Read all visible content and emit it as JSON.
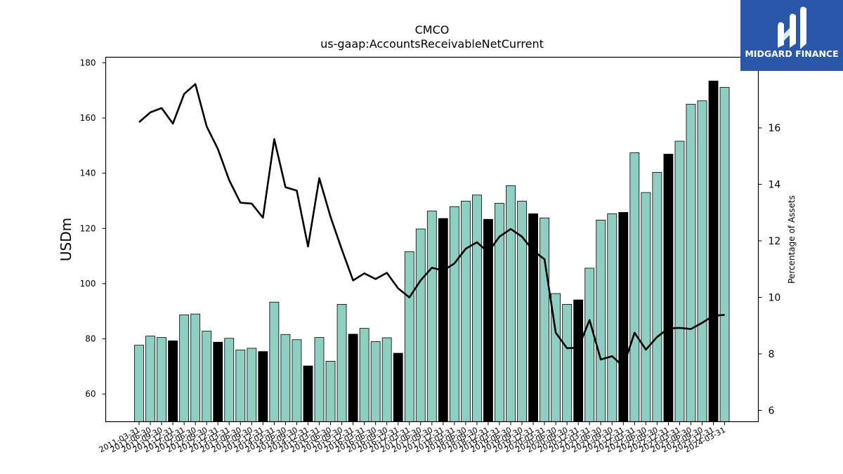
{
  "chart_data": {
    "type": "bar",
    "title": "CMCO",
    "subtitle": "us-gaap:AccountsReceivableNetCurrent",
    "ylabel": "USDm",
    "y2label": "Percentage of Assets",
    "ylim": [
      50,
      182
    ],
    "y2lim": [
      5.6,
      18.5
    ],
    "yticks": [
      60,
      80,
      100,
      120,
      140,
      160,
      180
    ],
    "y2ticks": [
      6,
      8,
      10,
      12,
      14,
      16
    ],
    "categories": [
      "2011-03-31",
      "2011-06-30",
      "2011-09-30",
      "2011-12-31",
      "2012-03-31",
      "2012-06-30",
      "2012-09-30",
      "2012-12-31",
      "2013-03-31",
      "2013-06-30",
      "2013-09-30",
      "2013-12-31",
      "2014-03-31",
      "2014-06-30",
      "2014-09-30",
      "2014-12-31",
      "2015-03-31",
      "2015-06-30",
      "2015-09-30",
      "2015-12-31",
      "2016-03-31",
      "2016-06-30",
      "2016-09-30",
      "2016-12-31",
      "2017-03-31",
      "2017-06-30",
      "2017-09-30",
      "2017-12-31",
      "2018-03-31",
      "2018-06-30",
      "2018-09-30",
      "2018-12-31",
      "2019-03-31",
      "2019-06-30",
      "2019-09-30",
      "2019-12-31",
      "2020-03-31",
      "2020-06-30",
      "2020-09-30",
      "2020-12-31",
      "2021-03-31",
      "2021-06-30",
      "2021-09-30",
      "2021-12-31",
      "2022-03-31",
      "2022-06-30",
      "2022-09-30",
      "2022-12-31",
      "2023-03-31",
      "2023-06-30",
      "2023-09-30",
      "2023-12-31",
      "2024-03-31"
    ],
    "xtick_labels": [
      "2011-03-31",
      "2011-06-30",
      "2011-09-30",
      "2011-12-31",
      "2012-03-31",
      "2012-06-30",
      "2012-09-30",
      "2012-12-31",
      "2013-03-31",
      "2013-06-30",
      "2013-09-30",
      "2013-12-31",
      "2014-03-31",
      "2014-06-30",
      "2014-09-30",
      "2014-12-31",
      "2015-03-31",
      "2015-06-30",
      "2015-09-30",
      "2015-12-31",
      "2016-03-31",
      "2016-06-30",
      "2016-09-30",
      "2016-12-31",
      "2017-03-31",
      "2017-06-30",
      "2017-09-30",
      "2017-12-31",
      "2018-03-31",
      "2018-06-30",
      "2018-09-30",
      "2018-12-31",
      "2019-03-31",
      "2019-06-30",
      "2019-09-30",
      "2019-12-31",
      "2020-03-31",
      "2020-06-30",
      "2020-09-30",
      "2020-12-31",
      "2021-03-31",
      "2021-06-30",
      "2021-09-30",
      "2021-12-31",
      "2022-03-31",
      "2022-06-30",
      "2022-09-30",
      "2022-12-31",
      "2023-03-31",
      "2023-06-30",
      "2023-09-30",
      "2023-12-31",
      "2024-03-31"
    ],
    "series": [
      {
        "name": "AccountsReceivableNetCurrent",
        "values": [
          77.7,
          81.0,
          80.5,
          79.3,
          88.7,
          89.0,
          82.8,
          78.8,
          80.2,
          76.0,
          76.6,
          75.4,
          93.3,
          81.6,
          79.7,
          70.2,
          80.5,
          71.9,
          92.5,
          81.7,
          83.8,
          79.0,
          80.4,
          74.8,
          111.6,
          119.8,
          126.3,
          123.6,
          127.9,
          129.9,
          132.1,
          123.3,
          129.1,
          135.5,
          129.9,
          125.3,
          123.8,
          96.4,
          92.5,
          94.1,
          105.6,
          123.0,
          125.3,
          125.8,
          147.4,
          133.0,
          140.3,
          146.9,
          151.6,
          165.0,
          166.2,
          173.4,
          171.1
        ]
      },
      {
        "name": "Percentage of Assets",
        "values": [
          16.2,
          16.55,
          16.7,
          16.15,
          17.2,
          17.55,
          16.05,
          15.25,
          14.15,
          13.35,
          13.32,
          12.82,
          15.6,
          13.9,
          13.78,
          11.8,
          14.22,
          12.85,
          11.7,
          10.6,
          10.85,
          10.65,
          10.87,
          10.32,
          10.0,
          10.6,
          11.05,
          10.95,
          11.2,
          11.72,
          11.95,
          11.6,
          12.15,
          12.42,
          12.15,
          11.65,
          11.35,
          8.75,
          8.2,
          8.22,
          9.2,
          7.8,
          7.92,
          7.55,
          8.75,
          8.15,
          8.6,
          8.9,
          8.92,
          8.88,
          9.1,
          9.35,
          9.38
        ]
      }
    ],
    "highlight_indices": [
      3,
      7,
      11,
      15,
      19,
      23,
      27,
      31,
      35,
      39,
      43,
      47,
      51
    ],
    "colors": {
      "bar": "#8ecfc1",
      "bar_highlight": "#000000",
      "line": "#000000"
    }
  },
  "logo": {
    "text": "MIDGARD FINANCE",
    "bg": "#2b57a9"
  }
}
